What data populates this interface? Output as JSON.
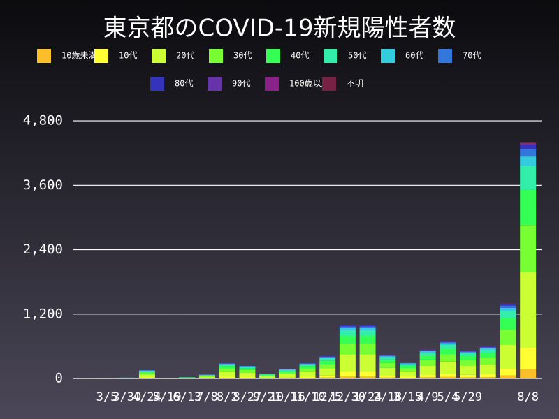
{
  "chart_data": {
    "type": "stacked_bar",
    "title": "東京都のCOVID-19新規陽性者数",
    "categories": [
      null,
      "3/5",
      "3/30",
      "4/24",
      "5/19",
      "6/13",
      "7/8",
      "8/2",
      "8/27",
      "9/21",
      "10/16",
      "11/10",
      "12/5",
      "12/30",
      "1/24",
      "2/18",
      "3/15",
      "4/9",
      "5/4",
      "5/29",
      null,
      null,
      "8/8"
    ],
    "series": [
      {
        "name": "10歳未満",
        "color": "#fbbf2a",
        "values": [
          0,
          0,
          1,
          6,
          0,
          1,
          3,
          12,
          10,
          4,
          7,
          12,
          17,
          40,
          40,
          18,
          12,
          22,
          28,
          21,
          24,
          56,
          176
        ]
      },
      {
        "name": "10代",
        "color": "#ffff33",
        "values": [
          0,
          1,
          1,
          14,
          1,
          2,
          7,
          26,
          22,
          8,
          16,
          26,
          38,
          90,
          90,
          40,
          27,
          49,
          63,
          47,
          54,
          126,
          396
        ]
      },
      {
        "name": "20代",
        "color": "#ccff33",
        "values": [
          2,
          3,
          5,
          51,
          3,
          8,
          24,
          93,
          77,
          29,
          58,
          93,
          134,
          320,
          320,
          141,
          96,
          173,
          224,
          166,
          192,
          448,
          1408
        ]
      },
      {
        "name": "30代",
        "color": "#77ff33",
        "values": [
          1,
          2,
          3,
          32,
          2,
          5,
          15,
          58,
          48,
          18,
          36,
          58,
          84,
          200,
          200,
          88,
          60,
          108,
          140,
          104,
          120,
          280,
          880
        ]
      },
      {
        "name": "40代",
        "color": "#33ff55",
        "values": [
          1,
          2,
          2,
          24,
          2,
          4,
          11,
          44,
          36,
          14,
          27,
          44,
          63,
          150,
          150,
          66,
          45,
          81,
          105,
          78,
          90,
          210,
          660
        ]
      },
      {
        "name": "50代",
        "color": "#33eeaa",
        "values": [
          1,
          1,
          2,
          16,
          1,
          3,
          8,
          29,
          24,
          9,
          18,
          29,
          42,
          100,
          100,
          44,
          30,
          54,
          70,
          52,
          60,
          140,
          440
        ]
      },
      {
        "name": "60代",
        "color": "#33ccdd",
        "values": [
          0,
          1,
          1,
          6,
          1,
          1,
          3,
          12,
          10,
          4,
          7,
          12,
          17,
          40,
          40,
          18,
          12,
          22,
          28,
          21,
          24,
          56,
          176
        ]
      },
      {
        "name": "70代",
        "color": "#3377dd",
        "values": [
          0,
          0,
          0,
          5,
          0,
          1,
          2,
          9,
          7,
          3,
          5,
          9,
          13,
          30,
          30,
          13,
          9,
          16,
          21,
          16,
          18,
          42,
          132
        ]
      },
      {
        "name": "80代",
        "color": "#3333bb",
        "values": [
          0,
          0,
          0,
          3,
          0,
          0,
          1,
          6,
          5,
          2,
          4,
          6,
          8,
          20,
          20,
          9,
          6,
          11,
          14,
          10,
          12,
          28,
          88
        ]
      },
      {
        "name": "90代",
        "color": "#6633aa",
        "values": [
          0,
          0,
          0,
          1,
          0,
          0,
          0,
          2,
          2,
          1,
          1,
          2,
          3,
          7,
          7,
          3,
          2,
          4,
          5,
          4,
          4,
          10,
          31
        ]
      },
      {
        "name": "100歳以上",
        "color": "#882288",
        "values": [
          0,
          0,
          0,
          0,
          0,
          0,
          0,
          0,
          0,
          0,
          0,
          0,
          0,
          0,
          0,
          0,
          0,
          0,
          0,
          0,
          0,
          0,
          0
        ]
      },
      {
        "name": "不明",
        "color": "#772244",
        "values": [
          0,
          0,
          0,
          1,
          0,
          0,
          0,
          1,
          1,
          0,
          1,
          1,
          1,
          3,
          3,
          1,
          1,
          2,
          2,
          2,
          2,
          4,
          13
        ]
      }
    ],
    "ylim": [
      0,
      5100
    ],
    "yticks": [
      0,
      {
        "value": 1200,
        "label": "1,200"
      },
      {
        "value": 2400,
        "label": "2,400"
      },
      {
        "value": 3600,
        "label": "3,600"
      },
      {
        "value": 4800,
        "label": "4,800"
      }
    ],
    "grid": true
  }
}
